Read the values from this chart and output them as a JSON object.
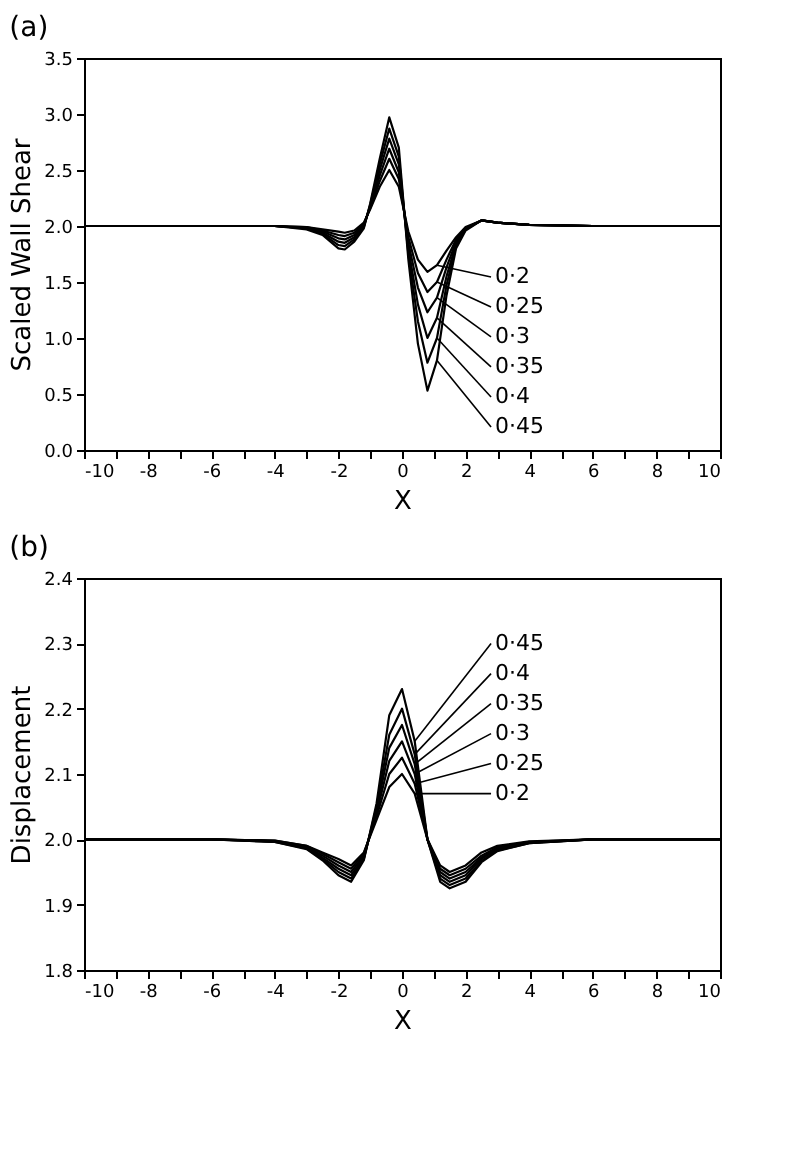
{
  "chart_data": [
    {
      "type": "line",
      "title": "(a)",
      "xlabel": "X",
      "ylabel": "Scaled Wall Shear",
      "xlim": [
        -10,
        10
      ],
      "ylim": [
        0,
        3.5
      ],
      "xticks": [
        -10,
        {
          "value": -9,
          "label": null
        },
        -8,
        {
          "value": -7,
          "label": null
        },
        -6,
        {
          "value": -5,
          "label": null
        },
        -4,
        {
          "value": -3,
          "label": null
        },
        -2,
        {
          "value": -1,
          "label": null
        },
        0,
        {
          "value": 1,
          "label": null
        },
        2,
        {
          "value": 3,
          "label": null
        },
        4,
        {
          "value": 5,
          "label": null
        },
        6,
        {
          "value": 7,
          "label": null
        },
        8,
        {
          "value": 9,
          "label": null
        },
        10
      ],
      "yticks": [
        {
          "value": 0,
          "label": "0.0"
        },
        0.5,
        {
          "value": 1,
          "label": "1.0"
        },
        1.5,
        {
          "value": 2,
          "label": "2.0"
        },
        2.5,
        {
          "value": 3,
          "label": "3.0"
        },
        3.5
      ],
      "legend": "right",
      "grid": false,
      "marker": "none",
      "line_style": "solid",
      "x": [
        -10,
        -5,
        -4,
        -3,
        -2.5,
        -2,
        -1.8,
        -1.5,
        -1.2,
        -1,
        -0.7,
        -0.4,
        -0.1,
        0.2,
        0.5,
        0.8,
        1.1,
        1.4,
        1.7,
        2,
        2.5,
        3,
        4,
        6,
        10
      ],
      "series": [
        {
          "name": "0·2",
          "color": "#000000",
          "values": [
            2,
            2,
            2,
            1.99,
            1.97,
            1.95,
            1.94,
            1.96,
            2.03,
            2.15,
            2.35,
            2.5,
            2.35,
            1.95,
            1.7,
            1.59,
            1.65,
            1.78,
            1.9,
            1.99,
            2.05,
            2.03,
            2.01,
            2,
            2
          ]
        },
        {
          "name": "0·25",
          "color": "#000000",
          "values": [
            2,
            2,
            2,
            1.99,
            1.96,
            1.92,
            1.91,
            1.94,
            2.02,
            2.16,
            2.4,
            2.6,
            2.42,
            1.9,
            1.58,
            1.41,
            1.5,
            1.7,
            1.88,
            1.98,
            2.05,
            2.03,
            2.01,
            2,
            2
          ]
        },
        {
          "name": "0·3",
          "color": "#000000",
          "values": [
            2,
            2,
            2,
            1.98,
            1.95,
            1.89,
            1.88,
            1.92,
            2.01,
            2.17,
            2.45,
            2.69,
            2.48,
            1.85,
            1.45,
            1.23,
            1.36,
            1.63,
            1.86,
            1.98,
            2.05,
            2.03,
            2.01,
            2,
            2
          ]
        },
        {
          "name": "0·35",
          "color": "#000000",
          "values": [
            2,
            2,
            2,
            1.98,
            1.94,
            1.86,
            1.85,
            1.9,
            2,
            2.18,
            2.5,
            2.78,
            2.55,
            1.8,
            1.3,
            1,
            1.18,
            1.55,
            1.84,
            1.97,
            2.05,
            2.03,
            2.01,
            2,
            2
          ]
        },
        {
          "name": "0·4",
          "color": "#000000",
          "values": [
            2,
            2,
            2,
            1.98,
            1.93,
            1.83,
            1.82,
            1.88,
            1.99,
            2.19,
            2.55,
            2.87,
            2.62,
            1.75,
            1.15,
            0.78,
            1,
            1.47,
            1.82,
            1.97,
            2.05,
            2.03,
            2.01,
            2,
            2
          ]
        },
        {
          "name": "0·45",
          "color": "#000000",
          "values": [
            2,
            2,
            2,
            1.97,
            1.92,
            1.8,
            1.79,
            1.86,
            1.98,
            2.2,
            2.6,
            2.97,
            2.7,
            1.7,
            0.95,
            0.53,
            0.8,
            1.38,
            1.8,
            1.96,
            2.05,
            2.03,
            2.01,
            2,
            2
          ]
        }
      ]
    },
    {
      "type": "line",
      "title": "(b)",
      "xlabel": "X",
      "ylabel": "Displacement",
      "xlim": [
        -10,
        10
      ],
      "ylim": [
        1.8,
        2.4
      ],
      "xticks": [
        -10,
        {
          "value": -9,
          "label": null
        },
        -8,
        {
          "value": -7,
          "label": null
        },
        -6,
        {
          "value": -5,
          "label": null
        },
        -4,
        {
          "value": -3,
          "label": null
        },
        -2,
        {
          "value": -1,
          "label": null
        },
        0,
        {
          "value": 1,
          "label": null
        },
        2,
        {
          "value": 3,
          "label": null
        },
        4,
        {
          "value": 5,
          "label": null
        },
        6,
        {
          "value": 7,
          "label": null
        },
        8,
        {
          "value": 9,
          "label": null
        },
        10
      ],
      "yticks": [
        1.8,
        1.9,
        {
          "value": 2,
          "label": "2.0"
        },
        2.1,
        2.2,
        2.3,
        2.4
      ],
      "legend": "right",
      "grid": false,
      "marker": "none",
      "line_style": "solid",
      "x": [
        -10,
        -6,
        -4,
        -3,
        -2.5,
        -2,
        -1.6,
        -1.2,
        -0.8,
        -0.4,
        0,
        0.4,
        0.8,
        1.2,
        1.5,
        2,
        2.5,
        3,
        4,
        6,
        10
      ],
      "series": [
        {
          "name": "0·45",
          "color": "#000000",
          "values": [
            2,
            2,
            1.996,
            1.985,
            1.968,
            1.945,
            1.935,
            1.968,
            2.055,
            2.19,
            2.23,
            2.15,
            2,
            1.935,
            1.925,
            1.935,
            1.965,
            1.982,
            1.994,
            2,
            2
          ]
        },
        {
          "name": "0·4",
          "color": "#000000",
          "values": [
            2,
            2,
            1.996,
            1.986,
            1.97,
            1.95,
            1.94,
            1.97,
            2.05,
            2.16,
            2.2,
            2.13,
            2,
            1.94,
            1.93,
            1.94,
            1.967,
            1.983,
            1.994,
            2,
            2
          ]
        },
        {
          "name": "0·35",
          "color": "#000000",
          "values": [
            2,
            2,
            1.997,
            1.987,
            1.972,
            1.955,
            1.945,
            1.972,
            2.045,
            2.14,
            2.175,
            2.115,
            2,
            1.945,
            1.935,
            1.945,
            1.97,
            1.985,
            1.995,
            2,
            2
          ]
        },
        {
          "name": "0·3",
          "color": "#000000",
          "values": [
            2,
            2,
            1.997,
            1.988,
            1.975,
            1.96,
            1.95,
            1.975,
            2.04,
            2.12,
            2.15,
            2.1,
            2,
            1.95,
            1.94,
            1.95,
            1.972,
            1.986,
            1.995,
            2,
            2
          ]
        },
        {
          "name": "0·25",
          "color": "#000000",
          "values": [
            2,
            2,
            1.998,
            1.99,
            1.978,
            1.965,
            1.955,
            1.978,
            2.035,
            2.1,
            2.125,
            2.085,
            2,
            1.955,
            1.945,
            1.955,
            1.975,
            1.988,
            1.996,
            2,
            2
          ]
        },
        {
          "name": "0·2",
          "color": "#000000",
          "values": [
            2,
            2,
            1.998,
            1.99,
            1.98,
            1.97,
            1.96,
            1.98,
            2.03,
            2.08,
            2.1,
            2.07,
            2,
            1.96,
            1.95,
            1.96,
            1.98,
            1.99,
            1.997,
            2,
            2
          ]
        }
      ]
    }
  ]
}
